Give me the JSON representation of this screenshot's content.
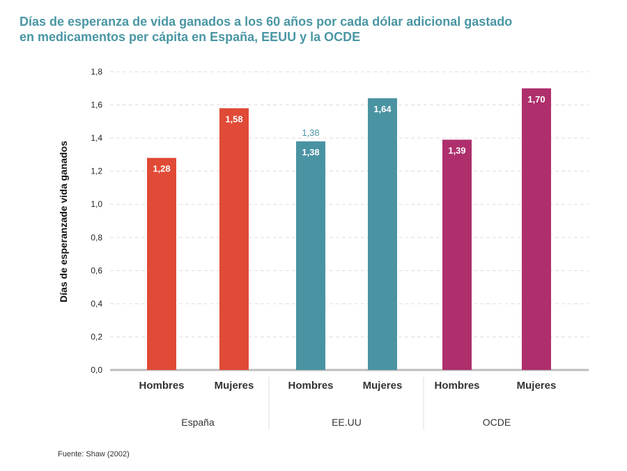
{
  "title_lines": [
    "Días de esperanza de vida ganados a los 60 años por cada dólar adicional gastado",
    "en medicamentos per cápita en España, EEUU y la OCDE"
  ],
  "source": "Fuente: Shaw (2002)",
  "colors": {
    "title": "#4a96a4",
    "groups": [
      "#e04a36",
      "#4a93a2",
      "#ae2f6c"
    ]
  },
  "chart_data": {
    "type": "bar",
    "ylabel": "Días de esperanzade vida ganados",
    "ylim": [
      0,
      1.8
    ],
    "yticks": [
      "0,0",
      "0,2",
      "0,4",
      "0,6",
      "0,8",
      "1,0",
      "1,2",
      "1,4",
      "1,6",
      "1,8"
    ],
    "groups": [
      {
        "name": "España",
        "bars": [
          {
            "category": "Hombres",
            "value": 1.28,
            "label": "1,28"
          },
          {
            "category": "Mujeres",
            "value": 1.58,
            "label": "1,58"
          }
        ]
      },
      {
        "name": "EE.UU",
        "bars": [
          {
            "category": "Hombres",
            "value": 1.38,
            "label": "1,38"
          },
          {
            "category": "Mujeres",
            "value": 1.64,
            "label": "1,64"
          }
        ]
      },
      {
        "name": "OCDE",
        "bars": [
          {
            "category": "Hombres",
            "value": 1.39,
            "label": "1,39"
          },
          {
            "category": "Mujeres",
            "value": 1.7,
            "label": "1,70"
          }
        ]
      }
    ],
    "annotations": [
      {
        "group": 1,
        "bar": 0,
        "text": "1,38"
      }
    ]
  }
}
